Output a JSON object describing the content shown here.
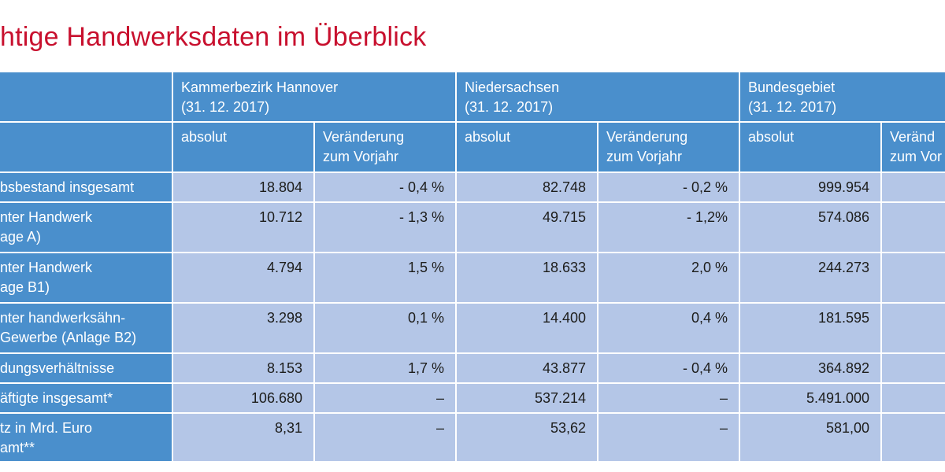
{
  "title": "htige Handwerksdaten im Überblick",
  "groups": [
    {
      "name": "Kammerbezirk Hannover",
      "date": "(31. 12. 2017)"
    },
    {
      "name": "Niedersachsen",
      "date": "(31. 12. 2017)"
    },
    {
      "name": "Bundesgebiet",
      "date": "(31. 12. 2017)"
    }
  ],
  "subheaders": {
    "absolut": "absolut",
    "change_line1": "Veränderung",
    "change_line2": "zum Vorjahr",
    "change_line1_cut": "Veränd",
    "change_line2_cut": "zum Vor"
  },
  "rows": [
    {
      "label1": "bsbestand insgesamt",
      "label2": "",
      "v": [
        "18.804",
        "- 0,4 %",
        "82.748",
        "- 0,2 %",
        "999.954"
      ]
    },
    {
      "label1": "nter Handwerk",
      "label2": "age A)",
      "v": [
        "10.712",
        "- 1,3 %",
        "49.715",
        "- 1,2%",
        "574.086"
      ]
    },
    {
      "label1": "nter  Handwerk",
      "label2": "age B1)",
      "v": [
        "4.794",
        "1,5 %",
        "18.633",
        "2,0 %",
        "244.273"
      ]
    },
    {
      "label1": "nter handwerksähn-",
      "label2": "Gewerbe (Anlage B2)",
      "v": [
        "3.298",
        "0,1 %",
        "14.400",
        "0,4 %",
        "181.595"
      ]
    },
    {
      "label1": "dungsverhältnisse",
      "label2": "",
      "v": [
        "8.153",
        "1,7 %",
        "43.877",
        "- 0,4 %",
        "364.892"
      ]
    },
    {
      "label1": "äftigte insgesamt*",
      "label2": "",
      "v": [
        "106.680",
        "–",
        "537.214",
        "–",
        "5.491.000"
      ]
    },
    {
      "label1": "tz in Mrd. Euro",
      "label2": "amt**",
      "v": [
        "8,31",
        "–",
        "53,62",
        "–",
        "581,00"
      ]
    }
  ],
  "colors": {
    "title": "#c8102e",
    "header": "#4a8fcc",
    "cell": "#b4c6e7"
  }
}
